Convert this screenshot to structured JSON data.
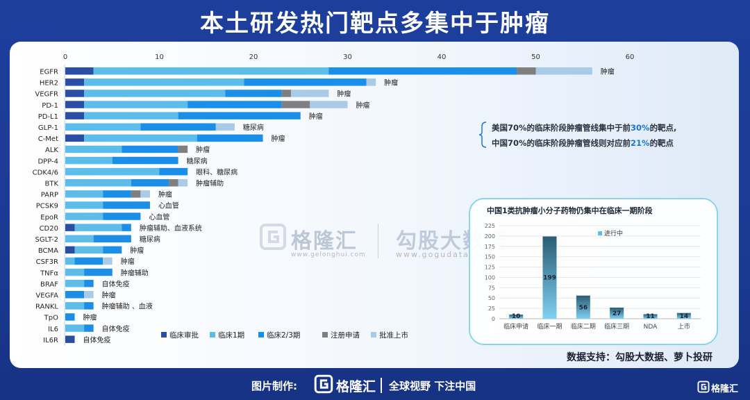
{
  "title": "本土研发热门靶点多集中于肿瘤",
  "colors": {
    "background": "#1b3a92",
    "stage_colors": [
      "#2a4ea2",
      "#5bbde8",
      "#1a8ee8",
      "#7f7f7f",
      "#a9cbe8"
    ]
  },
  "chart_data": [
    {
      "type": "bar",
      "orientation": "horizontal",
      "stacked": true,
      "categories": [
        "EGFR",
        "HER2",
        "VEGFR",
        "PD-1",
        "PD-L1",
        "GLP-1",
        "C-Met",
        "ALK",
        "DPP-4",
        "CDK4/6",
        "BTK",
        "PARP",
        "PCSK9",
        "EpoR",
        "CD20",
        "SGLT-2",
        "BCMA",
        "CSF3R",
        "TNFα",
        "BRAF",
        "VEGFA",
        "RANKL",
        "TpO",
        "IL6",
        "IL6R"
      ],
      "category_notes": [
        "肿瘤",
        "肿瘤",
        "肿瘤",
        "肿瘤",
        "肿瘤",
        "糖尿病",
        "肿瘤",
        "肿瘤",
        "糖尿病",
        "眼科、糖尿病",
        "肿瘤辅助",
        "肿瘤",
        "心血管",
        "心血管",
        "肿瘤辅助、血液系统",
        "糖尿病",
        "肿瘤",
        "肿瘤",
        "肿瘤辅助",
        "自体免疫",
        "肿瘤",
        "肿瘤辅助 、血液",
        "肿瘤",
        "自体免疫",
        "自体免疫"
      ],
      "series": [
        {
          "name": "临床审批",
          "values": [
            3,
            2,
            2,
            2,
            2,
            0,
            2,
            0,
            0,
            0,
            0,
            0,
            0,
            0,
            1,
            0,
            1,
            0,
            0,
            0,
            0,
            0,
            0,
            0,
            1
          ]
        },
        {
          "name": "临床1期",
          "values": [
            25,
            17,
            15,
            11,
            10,
            8,
            12,
            6,
            5,
            10,
            7,
            4,
            4,
            4,
            5,
            3,
            3,
            1,
            2,
            2,
            0,
            2,
            0,
            2,
            0
          ]
        },
        {
          "name": "临床2/3期",
          "values": [
            20,
            13,
            6,
            10,
            13,
            8,
            7,
            6,
            7,
            3,
            4,
            3,
            5,
            4,
            1,
            4,
            2,
            3,
            3,
            1,
            2,
            1,
            1,
            1,
            0
          ]
        },
        {
          "name": "注册申请",
          "values": [
            2,
            0,
            1,
            3,
            0,
            0,
            0,
            1,
            0,
            0,
            1,
            1,
            0,
            0,
            0,
            0,
            0,
            0,
            0,
            0,
            0,
            0,
            0,
            0,
            0
          ]
        },
        {
          "name": "批准上市",
          "values": [
            6,
            1,
            4,
            4,
            0,
            2,
            0,
            0,
            0,
            0,
            1,
            1,
            0,
            0,
            0,
            0,
            0,
            1,
            0,
            0,
            1,
            0,
            0,
            0,
            0
          ]
        }
      ],
      "x_ticks": [
        0,
        10,
        20,
        30,
        40,
        50,
        60
      ],
      "xlim": [
        0,
        60
      ],
      "legend_position": "bottom",
      "grid": false
    },
    {
      "type": "bar",
      "title": "中国1类抗肿瘤小分子药物仍集中在临床一期阶段",
      "categories": [
        "临床申请",
        "临床一期",
        "临床二期",
        "临床三期",
        "NDA",
        "上市"
      ],
      "series": [
        {
          "name": "进行中",
          "values": [
            10,
            199,
            56,
            27,
            11,
            14
          ]
        }
      ],
      "y_ticks": [
        0,
        25,
        50,
        75,
        100,
        125,
        150,
        175,
        200,
        225
      ],
      "ylim": [
        0,
        225
      ],
      "legend_position": "top",
      "grid": true
    }
  ],
  "notes": {
    "line1_pre": "美国70%的临床阶段肿瘤管线集中于前",
    "line1_hl": "30%",
    "line1_post": "的靶点,",
    "line2_pre": "中国70%的临床阶段肿瘤管线则对应前",
    "line2_hl": "21%",
    "line2_post": "的靶点"
  },
  "source": "数据支持：勾股大数据、萝卜投研",
  "watermark": {
    "brand": "格隆汇",
    "url": "www.gelonghui.com",
    "brand2": "勾股大数据",
    "url2": "www.gogudata.com"
  },
  "footer": {
    "label": "图片制作:",
    "brand": "格隆汇",
    "slogan": "全球视野 下注中国",
    "corner_brand": "格隆汇"
  }
}
